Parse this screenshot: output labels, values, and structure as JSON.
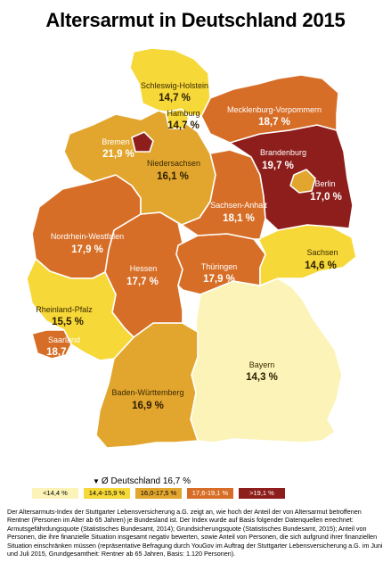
{
  "title": "Altersarmut in Deutschland 2015",
  "colors": {
    "c1": "#fbf3b7",
    "c2": "#f6d838",
    "c3": "#e2a62e",
    "c4": "#d76e27",
    "c5": "#8e1e1b",
    "border": "#ffffff"
  },
  "states": [
    {
      "id": "schleswig-holstein",
      "name": "Schleswig-Holstein",
      "value": "14,7 %",
      "cls": "c2"
    },
    {
      "id": "hamburg",
      "name": "Hamburg",
      "value": "14,7 %",
      "cls": "c2"
    },
    {
      "id": "mecklenburg-vorpommern",
      "name": "Mecklenburg-Vorpommern",
      "value": "18,7 %",
      "cls": "c4"
    },
    {
      "id": "bremen",
      "name": "Bremen",
      "value": "21,9 %",
      "cls": "c5"
    },
    {
      "id": "niedersachsen",
      "name": "Niedersachsen",
      "value": "16,1 %",
      "cls": "c3"
    },
    {
      "id": "brandenburg",
      "name": "Brandenburg",
      "value": "19,7 %",
      "cls": "c5"
    },
    {
      "id": "berlin",
      "name": "Berlin",
      "value": "17,0 %",
      "cls": "c3"
    },
    {
      "id": "sachsen-anhalt",
      "name": "Sachsen-Anhalt",
      "value": "18,1 %",
      "cls": "c4"
    },
    {
      "id": "nordrhein-westfalen",
      "name": "Nordrhein-Westfalen",
      "value": "17,9 %",
      "cls": "c4"
    },
    {
      "id": "sachsen",
      "name": "Sachsen",
      "value": "14,6 %",
      "cls": "c2"
    },
    {
      "id": "hessen",
      "name": "Hessen",
      "value": "17,7 %",
      "cls": "c4"
    },
    {
      "id": "thueringen",
      "name": "Thüringen",
      "value": "17,9 %",
      "cls": "c4"
    },
    {
      "id": "rheinland-pfalz",
      "name": "Rheinland-Pfalz",
      "value": "15,5 %",
      "cls": "c2"
    },
    {
      "id": "saarland",
      "name": "Saarland",
      "value": "18,7 %",
      "cls": "c4"
    },
    {
      "id": "bayern",
      "name": "Bayern",
      "value": "14,3 %",
      "cls": "c1"
    },
    {
      "id": "baden-wuerttemberg",
      "name": "Baden-Württemberg",
      "value": "16,9 %",
      "cls": "c3"
    }
  ],
  "average": {
    "label": "Ø Deutschland 16,7 %"
  },
  "legend": [
    {
      "label": "<14,4 %",
      "cls": "c1"
    },
    {
      "label": "14,4-15,9 %",
      "cls": "c2"
    },
    {
      "label": "16,0-17,5 %",
      "cls": "c3"
    },
    {
      "label": "17,6-19,1 %",
      "cls": "c4"
    },
    {
      "label": ">19,1 %",
      "cls": "c5"
    }
  ],
  "note": "Der Altersarmuts-Index der Stuttgarter Lebensversicherung a.G. zeigt an, wie hoch der Anteil der von Altersarmut betroffenen Rentner (Personen im Alter ab 65 Jahren) je Bundesland ist. Der Index wurde auf Basis folgender Datenquellen errechnet: Armutsgefährdungsquote (Statistisches Bundesamt, 2014); Grundsicherungsquote (Statistisches Bundesamt, 2015); Anteil von Personen, die ihre finanzielle Situation insgesamt negativ bewerten, sowie Anteil von Personen, die sich aufgrund ihrer finanziellen Situation einschränken müssen (repräsentative Befragung durch YouGov im Auftrag der Stuttgarter Lebensversicherung a.G. im Juni und Juli 2015, Grundgesamtheit: Rentner ab 65 Jahren, Basis: 1.120 Personen)."
}
